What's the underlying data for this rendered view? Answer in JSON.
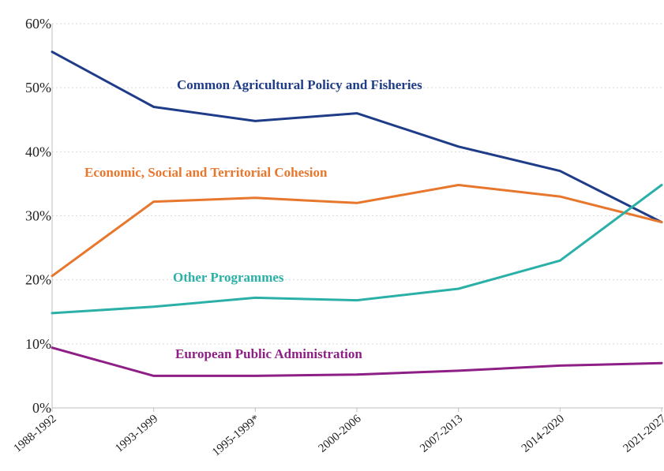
{
  "chart_data": {
    "type": "line",
    "categories": [
      "1988-1992",
      "1993-1999",
      "1995-1999*",
      "2000-2006",
      "2007-2013",
      "2014-2020",
      "2021-2027"
    ],
    "ylim": [
      0,
      60
    ],
    "yticks": [
      "0%",
      "10%",
      "20%",
      "30%",
      "40%",
      "50%",
      "60%"
    ],
    "grid": "horizontal",
    "series": [
      {
        "name": "Common Agricultural Policy and Fisheries",
        "color": "#1f3c88",
        "values": [
          55.6,
          47.0,
          44.8,
          46.0,
          40.8,
          37.0,
          29.0
        ]
      },
      {
        "name": "Economic, Social and Territorial Cohesion",
        "color": "#e8772e",
        "values": [
          20.6,
          32.2,
          32.8,
          32.0,
          34.8,
          33.0,
          29.0
        ]
      },
      {
        "name": "Other Programmes",
        "color": "#2bb0a8",
        "values": [
          14.8,
          15.8,
          17.2,
          16.8,
          18.6,
          23.0,
          34.8
        ]
      },
      {
        "name": "European Public Administration",
        "color": "#8e1f86",
        "values": [
          9.4,
          5.0,
          5.0,
          5.2,
          5.8,
          6.6,
          7.0
        ]
      }
    ]
  }
}
